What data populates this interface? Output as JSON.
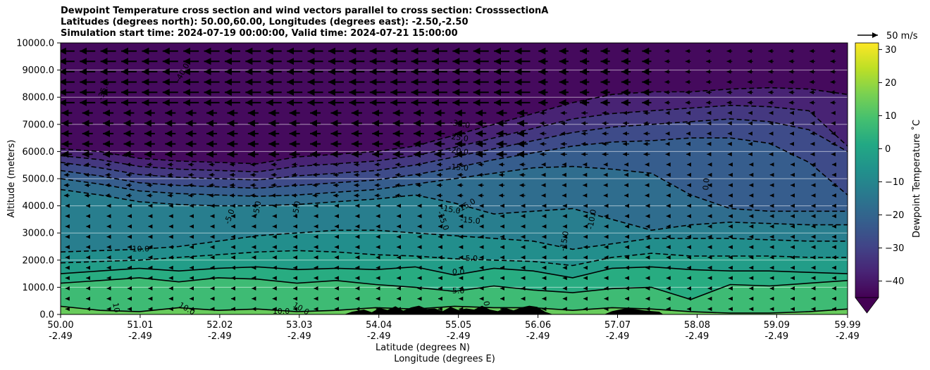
{
  "titles": [
    "Dewpoint Temperature cross section and wind vectors parallel to cross section: CrosssectionA",
    "Latitudes (degrees north): 50.00,60.00, Longitudes (degrees east): -2.50,-2.50",
    "Simulation start time: 2024-07-19 00:00:00, Valid time: 2024-07-21 15:00:00"
  ],
  "chart_data": {
    "type": "heatmap",
    "xlabel": "Latitude (degrees N)",
    "xlabel2": "Longitude (degrees E)",
    "ylabel": "Altitude (meters)",
    "xlim": [
      50.0,
      59.99
    ],
    "ylim": [
      0,
      10000
    ],
    "x_ticks": [
      {
        "lat": "50.00",
        "lon": "-2.49",
        "v": 50.0
      },
      {
        "lat": "51.01",
        "lon": "-2.49",
        "v": 51.01
      },
      {
        "lat": "52.02",
        "lon": "-2.49",
        "v": 52.02
      },
      {
        "lat": "53.03",
        "lon": "-2.49",
        "v": 53.03
      },
      {
        "lat": "54.04",
        "lon": "-2.49",
        "v": 54.04
      },
      {
        "lat": "55.05",
        "lon": "-2.49",
        "v": 55.05
      },
      {
        "lat": "56.06",
        "lon": "-2.49",
        "v": 56.06
      },
      {
        "lat": "57.07",
        "lon": "-2.49",
        "v": 57.07
      },
      {
        "lat": "58.08",
        "lon": "-2.49",
        "v": 58.08
      },
      {
        "lat": "59.09",
        "lon": "-2.49",
        "v": 59.09
      },
      {
        "lat": "59.99",
        "lon": "-2.49",
        "v": 59.99
      }
    ],
    "y_ticks": [
      "0.0",
      "1000.0",
      "2000.0",
      "3000.0",
      "4000.0",
      "5000.0",
      "6000.0",
      "7000.0",
      "8000.0",
      "9000.0",
      "10000.0"
    ],
    "grid": "horizontal",
    "colorbar": {
      "label": "Dewpoint Temperature ˚C",
      "range": [
        -45,
        32
      ],
      "ticks": [
        "30",
        "20",
        "10",
        "0",
        "−10",
        "−20",
        "−30",
        "−40"
      ],
      "tick_values": [
        30,
        20,
        10,
        0,
        -10,
        -20,
        -30,
        -40
      ],
      "extend": "min",
      "colormap": "viridis"
    },
    "quiver_key": "50 m/s",
    "contour_labels": [
      {
        "text": "-35.0",
        "x": 50.55,
        "y": 8250,
        "rot": -70
      },
      {
        "text": "-40.0",
        "x": 51.55,
        "y": 8900,
        "rot": -60
      },
      {
        "text": "-35.0",
        "x": 55.07,
        "y": 7000,
        "rot": 10
      },
      {
        "text": "-25.0",
        "x": 55.05,
        "y": 6500,
        "rot": 8
      },
      {
        "text": "-20.0",
        "x": 55.05,
        "y": 6000,
        "rot": 8
      },
      {
        "text": "-15.0",
        "x": 55.05,
        "y": 5400,
        "rot": 5
      },
      {
        "text": "-10.0",
        "x": 51.0,
        "y": 2400,
        "rot": 0
      },
      {
        "text": "-5.0",
        "x": 52.15,
        "y": 3600,
        "rot": -70
      },
      {
        "text": "-5.0",
        "x": 52.5,
        "y": 3900,
        "rot": -80
      },
      {
        "text": "-5.0",
        "x": 53.0,
        "y": 3900,
        "rot": -80
      },
      {
        "text": "-15.0",
        "x": 54.95,
        "y": 3850,
        "rot": 10
      },
      {
        "text": "-15.0",
        "x": 55.2,
        "y": 3450,
        "rot": 5
      },
      {
        "text": "-15.0",
        "x": 54.85,
        "y": 3450,
        "rot": 70
      },
      {
        "text": "-15.0",
        "x": 55.15,
        "y": 4000,
        "rot": -30
      },
      {
        "text": "-5.0",
        "x": 55.2,
        "y": 2050,
        "rot": 0
      },
      {
        "text": "0.0",
        "x": 55.05,
        "y": 1550,
        "rot": 0
      },
      {
        "text": "5.0",
        "x": 55.05,
        "y": 850,
        "rot": 0
      },
      {
        "text": "-15.0",
        "x": 56.4,
        "y": 2700,
        "rot": -80
      },
      {
        "text": "-10.0",
        "x": 56.75,
        "y": 3500,
        "rot": -80
      },
      {
        "text": "0.0",
        "x": 58.2,
        "y": 4800,
        "rot": -85
      },
      {
        "text": "10",
        "x": 50.7,
        "y": 250,
        "rot": 80
      },
      {
        "text": "10.0",
        "x": 51.6,
        "y": 200,
        "rot": 30
      },
      {
        "text": "10.0",
        "x": 52.8,
        "y": 100,
        "rot": 0
      },
      {
        "text": "10.0",
        "x": 53.05,
        "y": 200,
        "rot": 30
      },
      {
        "text": "0",
        "x": 55.4,
        "y": 400,
        "rot": 80
      }
    ],
    "contour_lines": [
      {
        "level": -40,
        "style": "dash",
        "x": [
          50.0,
          50.5,
          51.0,
          51.5,
          52.0,
          52.5,
          53.0,
          53.5,
          54.0,
          54.5,
          55.0,
          55.5,
          56.0,
          56.5,
          57.0,
          57.5,
          58.0,
          58.5,
          59.0,
          59.5,
          59.99
        ],
        "y": [
          6100,
          6000,
          5750,
          5650,
          5600,
          5550,
          5800,
          5900,
          6000,
          6200,
          6600,
          7000,
          7400,
          7800,
          8100,
          8200,
          8200,
          8300,
          8350,
          8300,
          8100
        ]
      },
      {
        "level": -35,
        "style": "dash",
        "x": [
          50.0,
          50.5,
          51.0,
          51.5,
          52.0,
          52.5,
          53.0,
          53.5,
          54.0,
          54.5,
          55.0,
          55.5,
          56.0,
          56.5,
          57.0,
          57.5,
          58.0,
          58.5,
          59.0,
          59.5,
          59.99
        ],
        "y": [
          5850,
          5700,
          5450,
          5350,
          5300,
          5250,
          5450,
          5550,
          5650,
          5850,
          6150,
          6500,
          6850,
          7200,
          7400,
          7500,
          7600,
          7700,
          7650,
          7500,
          6200
        ]
      },
      {
        "level": -30,
        "style": "dash",
        "x": [
          50.0,
          50.5,
          51.0,
          51.5,
          52.0,
          52.5,
          53.0,
          53.5,
          54.0,
          54.5,
          55.0,
          55.5,
          56.0,
          56.5,
          57.0,
          57.5,
          58.0,
          58.5,
          59.0,
          59.5,
          59.99
        ],
        "y": [
          5600,
          5400,
          5150,
          5050,
          5000,
          4950,
          5100,
          5200,
          5300,
          5500,
          5800,
          6100,
          6400,
          6700,
          6900,
          7000,
          7100,
          7200,
          7100,
          6800,
          6000
        ]
      },
      {
        "level": -25,
        "style": "dash",
        "x": [
          50.0,
          50.5,
          51.0,
          51.5,
          52.0,
          52.5,
          53.0,
          53.5,
          54.0,
          54.5,
          55.0,
          55.5,
          56.0,
          56.5,
          57.0,
          57.5,
          58.0,
          58.5,
          59.0,
          59.5,
          59.99
        ],
        "y": [
          5300,
          5100,
          4850,
          4750,
          4700,
          4650,
          4750,
          4850,
          4950,
          5150,
          5400,
          5700,
          5950,
          6200,
          6350,
          6400,
          6500,
          6500,
          6300,
          5600,
          4400
        ]
      },
      {
        "level": -20,
        "style": "dash",
        "x": [
          50.0,
          50.5,
          51.0,
          51.5,
          52.0,
          52.5,
          53.0,
          53.5,
          54.0,
          54.5,
          55.0,
          55.5,
          56.0,
          56.5,
          57.0,
          57.5,
          58.0,
          58.5,
          59.0,
          59.5,
          59.99
        ],
        "y": [
          5000,
          4800,
          4550,
          4450,
          4400,
          4350,
          4400,
          4500,
          4600,
          4800,
          5000,
          5200,
          5400,
          5450,
          5350,
          5200,
          4400,
          3900,
          3800,
          3800,
          3800
        ]
      },
      {
        "level": -15,
        "style": "dash",
        "x": [
          50.0,
          50.5,
          51.0,
          51.5,
          52.0,
          52.5,
          53.0,
          53.5,
          54.0,
          54.5,
          55.0,
          55.5,
          56.0,
          56.5,
          57.0,
          57.5,
          58.0,
          58.5,
          59.0,
          59.5,
          59.99
        ],
        "y": [
          4600,
          4400,
          4150,
          4050,
          4000,
          4000,
          4050,
          4150,
          4250,
          4400,
          4100,
          3700,
          3800,
          3900,
          3500,
          3100,
          3300,
          3400,
          3350,
          3300,
          3300
        ]
      },
      {
        "level": -10,
        "style": "dash",
        "x": [
          50.0,
          50.5,
          51.0,
          51.5,
          52.0,
          52.5,
          53.0,
          53.5,
          54.0,
          54.5,
          55.0,
          55.5,
          56.0,
          56.5,
          57.0,
          57.5,
          58.0,
          58.5,
          59.0,
          59.5,
          59.99
        ],
        "y": [
          2300,
          2350,
          2400,
          2500,
          2700,
          2900,
          3000,
          3100,
          3100,
          3000,
          2900,
          2800,
          2700,
          2400,
          2600,
          2800,
          2800,
          2800,
          2750,
          2700,
          2700
        ]
      },
      {
        "level": -5,
        "style": "dash",
        "x": [
          50.0,
          50.5,
          51.0,
          51.5,
          52.0,
          52.5,
          53.0,
          53.5,
          54.0,
          54.5,
          55.0,
          55.5,
          56.0,
          56.5,
          57.0,
          57.5,
          58.0,
          58.5,
          59.0,
          59.5,
          59.99
        ],
        "y": [
          1900,
          1950,
          2000,
          2100,
          2200,
          2300,
          2350,
          2300,
          2200,
          2150,
          2050,
          2000,
          1950,
          1800,
          2100,
          2250,
          2150,
          2150,
          2150,
          2100,
          2100
        ]
      },
      {
        "level": 0,
        "style": "solid",
        "x": [
          50.0,
          50.5,
          51.0,
          51.5,
          52.0,
          52.5,
          53.0,
          53.5,
          54.0,
          54.5,
          55.0,
          55.5,
          56.0,
          56.5,
          57.0,
          57.5,
          58.0,
          58.5,
          59.0,
          59.5,
          59.99
        ],
        "y": [
          1500,
          1600,
          1700,
          1600,
          1700,
          1750,
          1650,
          1700,
          1650,
          1750,
          1450,
          1700,
          1600,
          1350,
          1700,
          1750,
          1650,
          1600,
          1600,
          1550,
          1500
        ]
      },
      {
        "level": 5,
        "style": "solid",
        "x": [
          50.0,
          50.5,
          51.0,
          51.5,
          52.0,
          52.5,
          53.0,
          53.5,
          54.0,
          54.5,
          55.0,
          55.5,
          56.0,
          56.5,
          57.0,
          57.5,
          58.0,
          58.5,
          59.0,
          59.5,
          59.99
        ],
        "y": [
          1150,
          1250,
          1350,
          1200,
          1350,
          1300,
          1150,
          1250,
          1100,
          1000,
          850,
          1050,
          900,
          800,
          950,
          1000,
          550,
          1100,
          1050,
          1150,
          1250
        ]
      },
      {
        "level": 10,
        "style": "solid",
        "x": [
          50.0,
          50.5,
          51.0,
          51.5,
          52.0,
          52.5,
          53.0,
          53.5,
          54.0,
          54.5,
          55.0,
          55.5,
          56.0,
          56.5,
          57.0,
          57.5,
          58.0,
          58.5,
          59.0,
          59.5,
          59.99
        ],
        "y": [
          300,
          150,
          100,
          250,
          150,
          200,
          100,
          150,
          250,
          200,
          300,
          250,
          250,
          150,
          250,
          200,
          100,
          50,
          50,
          100,
          200
        ]
      }
    ],
    "terrain": {
      "x": [
        50.0,
        53.6,
        53.7,
        53.85,
        53.95,
        54.05,
        54.15,
        54.25,
        54.35,
        54.45,
        54.55,
        54.65,
        54.75,
        54.85,
        54.95,
        55.05,
        55.15,
        55.25,
        55.35,
        55.45,
        55.55,
        55.65,
        55.75,
        55.85,
        55.95,
        56.05,
        56.15,
        56.25,
        56.9,
        57.0,
        57.2,
        57.4,
        57.6,
        57.65,
        59.99
      ],
      "y": [
        0,
        0,
        100,
        180,
        80,
        240,
        160,
        300,
        140,
        260,
        320,
        200,
        220,
        120,
        280,
        160,
        220,
        180,
        320,
        180,
        120,
        240,
        150,
        260,
        320,
        280,
        100,
        0,
        0,
        120,
        240,
        150,
        100,
        0,
        0
      ]
    }
  }
}
